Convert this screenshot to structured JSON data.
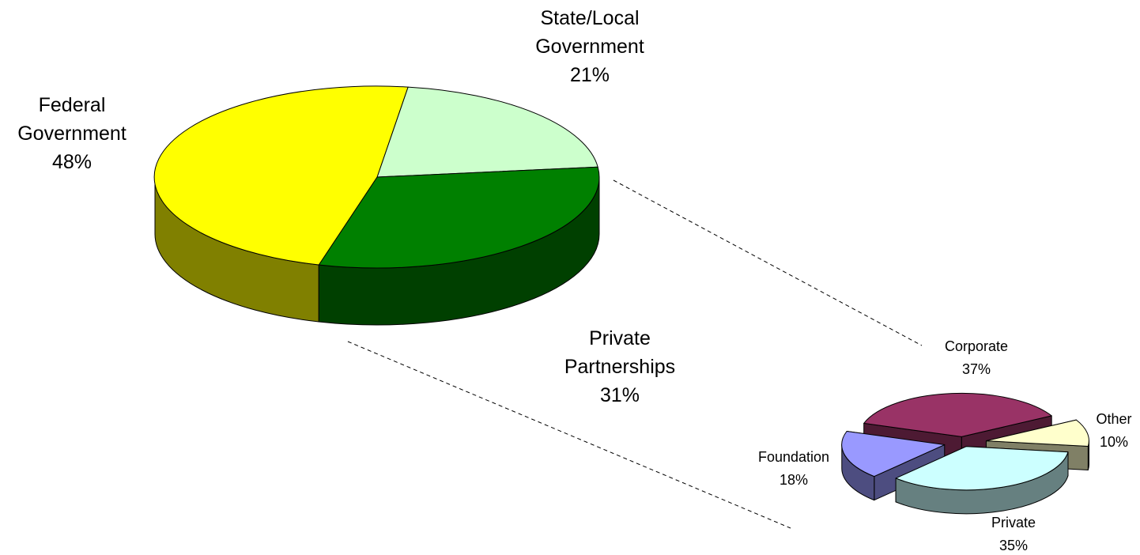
{
  "chart_data": [
    {
      "type": "pie",
      "style": "3d",
      "title": "",
      "slices": [
        {
          "label": "State/Local Government",
          "value": 21,
          "value_label": "21%",
          "color": "#ccffcc",
          "side_color": "#99cc99"
        },
        {
          "label": "Private Partnerships",
          "value": 31,
          "value_label": "31%",
          "color": "#008000",
          "side_color": "#004000"
        },
        {
          "label": "Federal Government",
          "value": 48,
          "value_label": "48%",
          "color": "#ffff00",
          "side_color": "#808000"
        }
      ],
      "exploded_slice": "Private Partnerships"
    },
    {
      "type": "pie",
      "style": "3d-exploded",
      "title": "",
      "breakdown_of": "Private Partnerships",
      "slices": [
        {
          "label": "Corporate",
          "value": 37,
          "value_label": "37%",
          "color": "#993366",
          "side_color": "#4d1a33"
        },
        {
          "label": "Other",
          "value": 10,
          "value_label": "10%",
          "color": "#ffffcc",
          "side_color": "#808066"
        },
        {
          "label": "Private",
          "value": 35,
          "value_label": "35%",
          "color": "#ccffff",
          "side_color": "#668080"
        },
        {
          "label": "Foundation",
          "value": 18,
          "value_label": "18%",
          "color": "#9999ff",
          "side_color": "#4d4d80"
        }
      ]
    }
  ]
}
